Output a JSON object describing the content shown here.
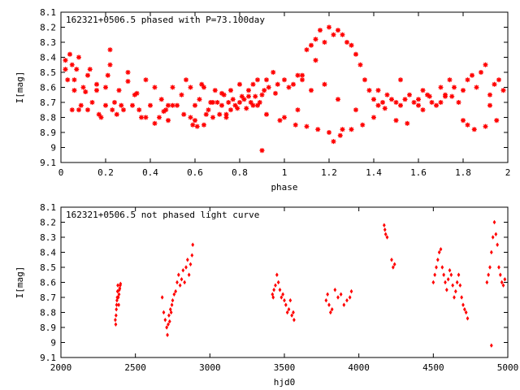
{
  "chart_data": [
    {
      "type": "scatter",
      "title": "162321+0506.5 phased with P=73.100day",
      "xlabel": "phase",
      "ylabel": "I[mag]",
      "xlim": [
        0,
        2
      ],
      "ylim": [
        9.1,
        8.1
      ],
      "y_inverted": true,
      "xticks": [
        0,
        0.2,
        0.4,
        0.6,
        0.8,
        1,
        1.2,
        1.4,
        1.6,
        1.8,
        2
      ],
      "yticks": [
        8.1,
        8.2,
        8.3,
        8.4,
        8.5,
        8.6,
        8.7,
        8.8,
        8.9,
        9,
        9.1
      ],
      "grid": false,
      "marker": "star",
      "color": "#ff0000",
      "x": [
        0.02,
        0.03,
        0.04,
        0.05,
        0.06,
        0.07,
        0.08,
        0.09,
        0.1,
        0.11,
        0.12,
        0.13,
        0.14,
        0.16,
        0.17,
        0.18,
        0.2,
        0.21,
        0.22,
        0.23,
        0.24,
        0.25,
        0.27,
        0.28,
        0.3,
        0.32,
        0.33,
        0.35,
        0.36,
        0.38,
        0.4,
        0.42,
        0.44,
        0.45,
        0.47,
        0.48,
        0.5,
        0.52,
        0.54,
        0.56,
        0.58,
        0.59,
        0.6,
        0.61,
        0.62,
        0.63,
        0.64,
        0.65,
        0.66,
        0.67,
        0.68,
        0.69,
        0.7,
        0.71,
        0.72,
        0.73,
        0.74,
        0.75,
        0.76,
        0.77,
        0.78,
        0.79,
        0.8,
        0.81,
        0.82,
        0.83,
        0.84,
        0.85,
        0.86,
        0.87,
        0.88,
        0.89,
        0.9,
        0.91,
        0.92,
        0.93,
        0.95,
        0.97,
        1.0,
        1.02,
        1.04,
        1.06,
        1.08,
        1.1,
        1.12,
        1.14,
        1.16,
        1.18,
        1.2,
        1.22,
        1.24,
        1.26,
        1.28,
        1.3,
        1.32,
        1.34,
        1.36,
        1.38,
        1.4,
        1.42,
        1.44,
        1.46,
        1.48,
        1.5,
        1.52,
        1.54,
        1.56,
        1.58,
        1.6,
        1.62,
        1.64,
        1.66,
        1.68,
        1.7,
        1.72,
        1.74,
        1.76,
        1.78,
        1.8,
        1.82,
        1.84,
        1.86,
        1.88,
        1.9,
        1.92,
        1.94,
        1.96,
        1.98,
        0.02,
        0.05,
        0.08,
        0.12,
        0.16,
        0.2,
        0.26,
        0.3,
        0.34,
        0.38,
        0.42,
        0.46,
        0.5,
        0.55,
        0.6,
        0.64,
        0.68,
        0.72,
        0.76,
        0.8,
        0.84,
        0.88,
        0.92,
        0.96,
        1.0,
        1.05,
        1.1,
        1.15,
        1.2,
        1.25,
        1.3,
        1.35,
        1.4,
        1.45,
        1.5,
        1.55,
        1.6,
        1.65,
        1.7,
        1.75,
        1.8,
        1.85,
        1.9,
        1.95,
        0.9,
        1.22,
        1.26,
        1.08,
        1.14,
        0.06,
        0.22,
        0.48,
        0.58,
        0.74,
        0.86,
        0.98,
        1.06,
        1.12,
        1.18,
        1.24,
        1.32,
        1.42,
        1.52,
        1.62,
        1.72,
        1.82,
        1.92
      ],
      "y": [
        8.42,
        8.55,
        8.38,
        8.45,
        8.62,
        8.48,
        8.75,
        8.72,
        8.6,
        8.63,
        8.75,
        8.48,
        8.7,
        8.62,
        8.78,
        8.8,
        8.72,
        8.52,
        8.35,
        8.75,
        8.7,
        8.78,
        8.72,
        8.75,
        8.5,
        8.72,
        8.65,
        8.75,
        8.8,
        8.55,
        8.72,
        8.6,
        8.8,
        8.68,
        8.75,
        8.82,
        8.6,
        8.72,
        8.65,
        8.55,
        8.8,
        8.85,
        8.72,
        8.86,
        8.68,
        8.58,
        8.85,
        8.78,
        8.75,
        8.7,
        8.8,
        8.62,
        8.7,
        8.78,
        8.72,
        8.65,
        8.8,
        8.7,
        8.75,
        8.68,
        8.72,
        8.74,
        8.7,
        8.66,
        8.68,
        8.74,
        8.62,
        8.7,
        8.58,
        8.66,
        8.72,
        8.7,
        8.65,
        8.62,
        8.55,
        8.6,
        8.5,
        8.58,
        8.55,
        8.6,
        8.58,
        8.52,
        8.55,
        8.35,
        8.32,
        8.28,
        8.22,
        8.3,
        8.2,
        8.25,
        8.22,
        8.25,
        8.3,
        8.32,
        8.38,
        8.45,
        8.55,
        8.62,
        8.68,
        8.72,
        8.7,
        8.65,
        8.68,
        8.7,
        8.72,
        8.68,
        8.65,
        8.7,
        8.68,
        8.62,
        8.65,
        8.7,
        8.72,
        8.6,
        8.65,
        8.55,
        8.6,
        8.7,
        8.62,
        8.55,
        8.52,
        8.6,
        8.5,
        8.45,
        8.65,
        8.58,
        8.55,
        8.62,
        8.48,
        8.75,
        8.4,
        8.52,
        8.58,
        8.6,
        8.62,
        8.56,
        8.64,
        8.8,
        8.84,
        8.76,
        8.72,
        8.78,
        8.82,
        8.6,
        8.7,
        8.64,
        8.62,
        8.58,
        8.66,
        8.55,
        8.78,
        8.64,
        8.8,
        8.85,
        8.86,
        8.88,
        8.9,
        8.92,
        8.88,
        8.85,
        8.8,
        8.74,
        8.82,
        8.84,
        8.72,
        8.66,
        8.7,
        8.66,
        8.82,
        8.88,
        8.86,
        8.82,
        9.02,
        8.96,
        8.88,
        8.52,
        8.42,
        8.55,
        8.45,
        8.72,
        8.6,
        8.78,
        8.72,
        8.82,
        8.75,
        8.62,
        8.58,
        8.68,
        8.75,
        8.62,
        8.55,
        8.75,
        8.66,
        8.85,
        8.72
      ]
    },
    {
      "type": "scatter",
      "title": "162321+0506.5 not phased light curve",
      "xlabel": "hjd0",
      "ylabel": "I[mag]",
      "xlim": [
        2000,
        5000
      ],
      "ylim": [
        9.1,
        8.1
      ],
      "y_inverted": true,
      "xticks": [
        2000,
        2500,
        3000,
        3500,
        4000,
        4500,
        5000
      ],
      "yticks": [
        8.1,
        8.2,
        8.3,
        8.4,
        8.5,
        8.6,
        8.7,
        8.8,
        8.9,
        9,
        9.1
      ],
      "grid": false,
      "marker": "diamond",
      "color": "#ff0000",
      "x": [
        2365,
        2368,
        2370,
        2372,
        2374,
        2376,
        2378,
        2380,
        2382,
        2385,
        2388,
        2390,
        2392,
        2395,
        2398,
        2400,
        2680,
        2690,
        2700,
        2710,
        2715,
        2720,
        2725,
        2730,
        2735,
        2740,
        2745,
        2750,
        2760,
        2770,
        2780,
        2790,
        2800,
        2810,
        2820,
        2830,
        2840,
        2850,
        2860,
        2870,
        2880,
        2885,
        3420,
        3425,
        3430,
        3440,
        3450,
        3460,
        3470,
        3480,
        3490,
        3500,
        3510,
        3520,
        3530,
        3540,
        3550,
        3560,
        3565,
        3780,
        3790,
        3800,
        3810,
        3820,
        3840,
        3860,
        3880,
        3900,
        3920,
        3940,
        3950,
        4170,
        4175,
        4180,
        4190,
        4220,
        4230,
        4240,
        4500,
        4510,
        4520,
        4530,
        4540,
        4550,
        4560,
        4570,
        4580,
        4590,
        4600,
        4610,
        4620,
        4630,
        4640,
        4650,
        4660,
        4670,
        4680,
        4690,
        4700,
        4710,
        4720,
        4730,
        4860,
        4870,
        4880,
        4890,
        4900,
        4910,
        4920,
        4930,
        4940,
        4950,
        4960,
        4970,
        4980,
        4890
      ],
      "y": [
        8.85,
        8.88,
        8.82,
        8.78,
        8.75,
        8.72,
        8.7,
        8.66,
        8.62,
        8.7,
        8.75,
        8.68,
        8.65,
        8.64,
        8.62,
        8.61,
        8.7,
        8.8,
        8.85,
        8.9,
        8.95,
        8.88,
        8.82,
        8.86,
        8.78,
        8.8,
        8.75,
        8.72,
        8.68,
        8.66,
        8.6,
        8.55,
        8.62,
        8.58,
        8.52,
        8.6,
        8.5,
        8.45,
        8.55,
        8.48,
        8.42,
        8.35,
        8.68,
        8.7,
        8.65,
        8.62,
        8.55,
        8.6,
        8.65,
        8.7,
        8.68,
        8.72,
        8.75,
        8.8,
        8.78,
        8.72,
        8.82,
        8.8,
        8.85,
        8.72,
        8.68,
        8.75,
        8.8,
        8.78,
        8.65,
        8.7,
        8.68,
        8.75,
        8.72,
        8.7,
        8.66,
        8.22,
        8.25,
        8.28,
        8.3,
        8.45,
        8.5,
        8.48,
        8.6,
        8.55,
        8.5,
        8.45,
        8.4,
        8.38,
        8.5,
        8.55,
        8.6,
        8.65,
        8.58,
        8.52,
        8.55,
        8.62,
        8.7,
        8.66,
        8.6,
        8.55,
        8.62,
        8.7,
        8.75,
        8.78,
        8.8,
        8.84,
        8.6,
        8.55,
        8.5,
        8.4,
        8.3,
        8.2,
        8.28,
        8.35,
        8.5,
        8.55,
        8.6,
        8.62,
        8.58,
        9.02
      ]
    }
  ]
}
